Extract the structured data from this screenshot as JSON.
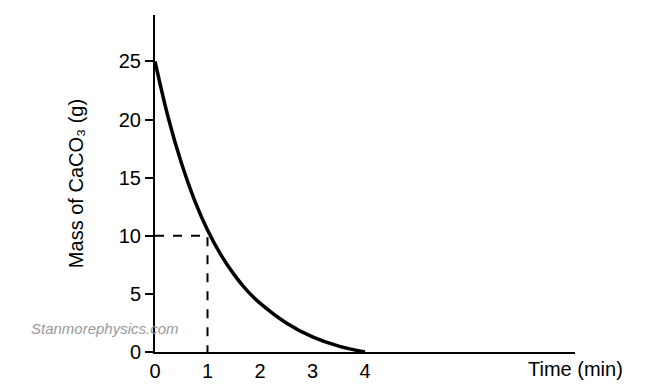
{
  "chart_data": {
    "type": "line",
    "x_label": "Time (min)",
    "y_label": "Mass of CaCO₃ (g)",
    "series": [
      {
        "x": [
          0,
          0.25,
          0.5,
          0.75,
          1,
          1.25,
          1.5,
          1.75,
          2,
          2.5,
          3,
          3.5,
          4
        ],
        "values": [
          25,
          20.2,
          16.3,
          13.1,
          10.5,
          8.4,
          6.7,
          5.3,
          4.2,
          2.5,
          1.3,
          0.5,
          0
        ],
        "color": "#000000",
        "line_style": "solid"
      },
      {
        "x": [
          0,
          1,
          1
        ],
        "values": [
          10,
          10,
          0
        ],
        "color": "#000000",
        "line_style": "dashed"
      }
    ],
    "xlim": [
      0,
      8
    ],
    "xticks": [
      0,
      1,
      2,
      3,
      4
    ],
    "ylim": [
      0,
      29
    ],
    "yticks": [
      0,
      5,
      10,
      15,
      20,
      25
    ],
    "grid": false,
    "annotations": [
      "Stanmorephysics.com"
    ]
  }
}
